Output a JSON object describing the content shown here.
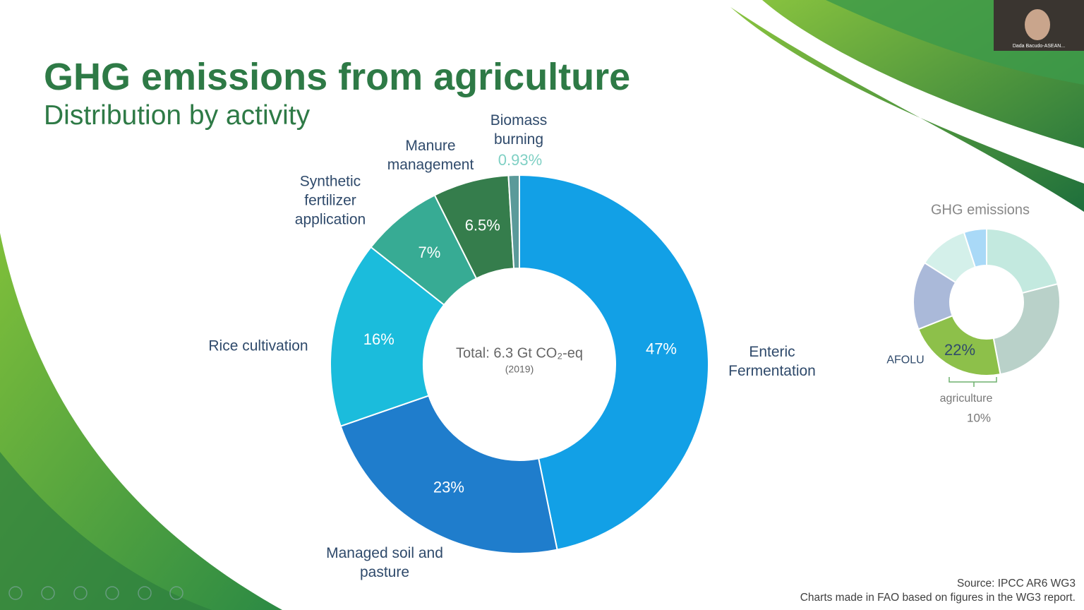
{
  "chart_data": [
    {
      "type": "donut",
      "title": "GHG emissions from agriculture",
      "subtitle": "Distribution by activity",
      "center_label": "Total: 6.3 Gt CO₂-eq",
      "center_sublabel": "(2019)",
      "categories": [
        "Enteric Fermentation",
        "Managed soil and pasture",
        "Rice cultivation",
        "Synthetic fertilizer application",
        "Manure management",
        "Biomass burning"
      ],
      "values": [
        47,
        23,
        16,
        7,
        6.5,
        0.93
      ],
      "value_labels": [
        "47%",
        "23%",
        "16%",
        "7%",
        "6.5%",
        "0.93%"
      ],
      "colors": [
        "#12a0e6",
        "#1f7dcc",
        "#1bbcdc",
        "#37ab94",
        "#357d4c",
        "#5a9a9a"
      ]
    },
    {
      "type": "donut",
      "title": "GHG emissions",
      "categories": [
        null,
        null,
        "AFOLU",
        null,
        null,
        null
      ],
      "values": [
        21,
        26,
        22,
        15,
        11,
        5
      ],
      "value_labels": [
        null,
        null,
        "22%",
        null,
        null,
        null
      ],
      "colors": [
        "#c3e9df",
        "#b9d1c9",
        "#8dc04a",
        "#aab9d9",
        "#d4f0ea",
        "#a9d9f7"
      ],
      "annotation": {
        "text": "agriculture",
        "value_label": "10%"
      }
    }
  ],
  "source": "Source: IPCC AR6 WG3",
  "footnote": "Charts made in FAO based on figures in the WG3 report.",
  "webcam_name": "Dada Bacudo-ASEAN..."
}
